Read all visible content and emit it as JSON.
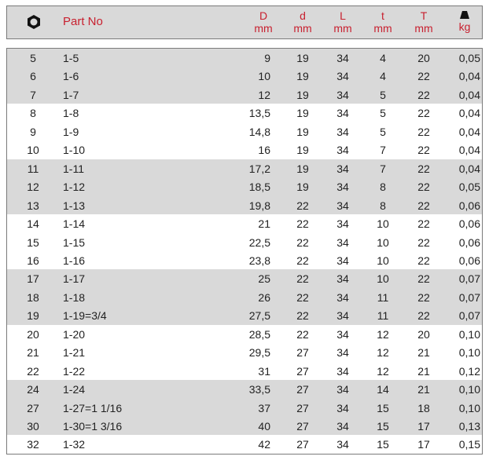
{
  "header": {
    "icon": "hex-nut-icon",
    "part_no": "Part No",
    "cols": [
      {
        "top": "D",
        "unit": "mm"
      },
      {
        "top": "d",
        "unit": "mm"
      },
      {
        "top": "L",
        "unit": "mm"
      },
      {
        "top": "t",
        "unit": "mm"
      },
      {
        "top": "T",
        "unit": "mm"
      },
      {
        "top": "weight-icon",
        "unit": "kg"
      }
    ]
  },
  "colors": {
    "header_text": "#c8202f",
    "shade": "#d9d9d9"
  },
  "rows": [
    [
      "5",
      "1-5",
      "9",
      "19",
      "34",
      "4",
      "20",
      "0,05"
    ],
    [
      "6",
      "1-6",
      "10",
      "19",
      "34",
      "4",
      "22",
      "0,04"
    ],
    [
      "7",
      "1-7",
      "12",
      "19",
      "34",
      "5",
      "22",
      "0,04"
    ],
    [
      "8",
      "1-8",
      "13,5",
      "19",
      "34",
      "5",
      "22",
      "0,04"
    ],
    [
      "9",
      "1-9",
      "14,8",
      "19",
      "34",
      "5",
      "22",
      "0,04"
    ],
    [
      "10",
      "1-10",
      "16",
      "19",
      "34",
      "7",
      "22",
      "0,04"
    ],
    [
      "11",
      "1-11",
      "17,2",
      "19",
      "34",
      "7",
      "22",
      "0,04"
    ],
    [
      "12",
      "1-12",
      "18,5",
      "19",
      "34",
      "8",
      "22",
      "0,05"
    ],
    [
      "13",
      "1-13",
      "19,8",
      "22",
      "34",
      "8",
      "22",
      "0,06"
    ],
    [
      "14",
      "1-14",
      "21",
      "22",
      "34",
      "10",
      "22",
      "0,06"
    ],
    [
      "15",
      "1-15",
      "22,5",
      "22",
      "34",
      "10",
      "22",
      "0,06"
    ],
    [
      "16",
      "1-16",
      "23,8",
      "22",
      "34",
      "10",
      "22",
      "0,06"
    ],
    [
      "17",
      "1-17",
      "25",
      "22",
      "34",
      "10",
      "22",
      "0,07"
    ],
    [
      "18",
      "1-18",
      "26",
      "22",
      "34",
      "11",
      "22",
      "0,07"
    ],
    [
      "19",
      "1-19=3/4",
      "27,5",
      "22",
      "34",
      "11",
      "22",
      "0,07"
    ],
    [
      "20",
      "1-20",
      "28,5",
      "22",
      "34",
      "12",
      "20",
      "0,10"
    ],
    [
      "21",
      "1-21",
      "29,5",
      "27",
      "34",
      "12",
      "21",
      "0,10"
    ],
    [
      "22",
      "1-22",
      "31",
      "27",
      "34",
      "12",
      "21",
      "0,12"
    ],
    [
      "24",
      "1-24",
      "33,5",
      "27",
      "34",
      "14",
      "21",
      "0,10"
    ],
    [
      "27",
      "1-27=1 1/16",
      "37",
      "27",
      "34",
      "15",
      "18",
      "0,10"
    ],
    [
      "30",
      "1-30=1 3/16",
      "40",
      "27",
      "34",
      "15",
      "17",
      "0,13"
    ],
    [
      "32",
      "1-32",
      "42",
      "27",
      "34",
      "15",
      "17",
      "0,15"
    ]
  ]
}
